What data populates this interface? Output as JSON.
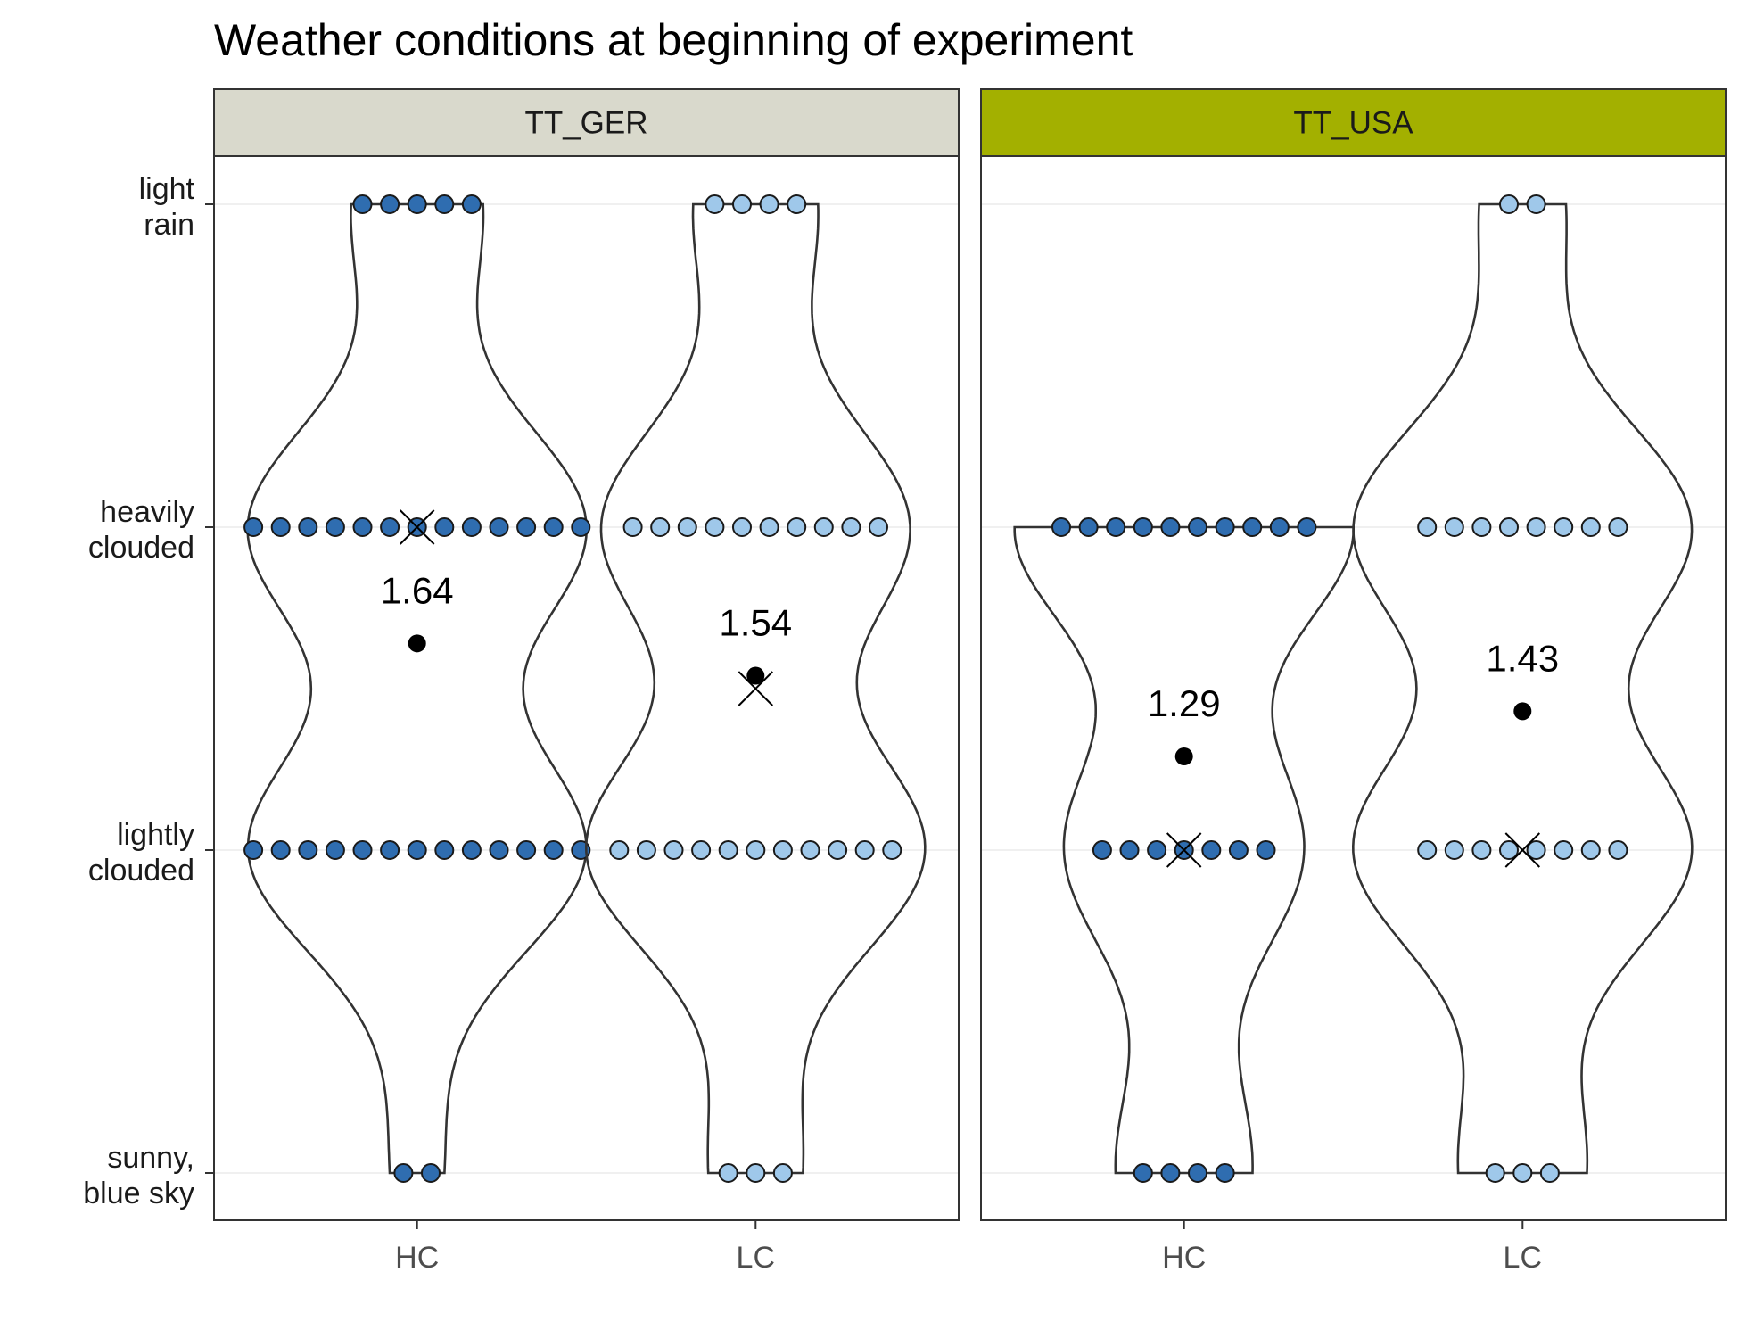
{
  "chart_data": {
    "type": "violin",
    "title": "Weather conditions at beginning of experiment",
    "xlabel": "",
    "ylabel": "",
    "y_levels": [
      {
        "value": 0,
        "label_lines": [
          "sunny,",
          "blue sky"
        ]
      },
      {
        "value": 1,
        "label_lines": [
          "lightly",
          "clouded"
        ]
      },
      {
        "value": 2,
        "label_lines": [
          "heavily",
          "clouded"
        ]
      },
      {
        "value": 3,
        "label_lines": [
          "light",
          "rain"
        ]
      }
    ],
    "ylim": [
      -0.14,
      3.14
    ],
    "categories": [
      "HC",
      "LC"
    ],
    "grid": true,
    "colors": {
      "HC": "#2f6db0",
      "LC": "#9fc8ea",
      "TT_GER_strip": "#d9d9cc",
      "TT_USA_strip": "#a3b000",
      "outline": "#333333"
    },
    "facets": [
      {
        "name": "TT_GER",
        "groups": [
          {
            "category": "HC",
            "counts": {
              "0": 2,
              "1": 13,
              "2": 13,
              "3": 5
            },
            "mean": 1.64,
            "mean_label": "1.64",
            "median": 2
          },
          {
            "category": "LC",
            "counts": {
              "0": 3,
              "1": 11,
              "2": 10,
              "3": 4
            },
            "mean": 1.54,
            "mean_label": "1.54",
            "median": 1.5
          }
        ]
      },
      {
        "name": "TT_USA",
        "groups": [
          {
            "category": "HC",
            "counts": {
              "0": 4,
              "1": 7,
              "2": 10,
              "3": 0
            },
            "mean": 1.29,
            "mean_label": "1.29",
            "median": 1
          },
          {
            "category": "LC",
            "counts": {
              "0": 3,
              "1": 8,
              "2": 8,
              "3": 2
            },
            "mean": 1.43,
            "mean_label": "1.43",
            "median": 1
          }
        ]
      }
    ]
  }
}
